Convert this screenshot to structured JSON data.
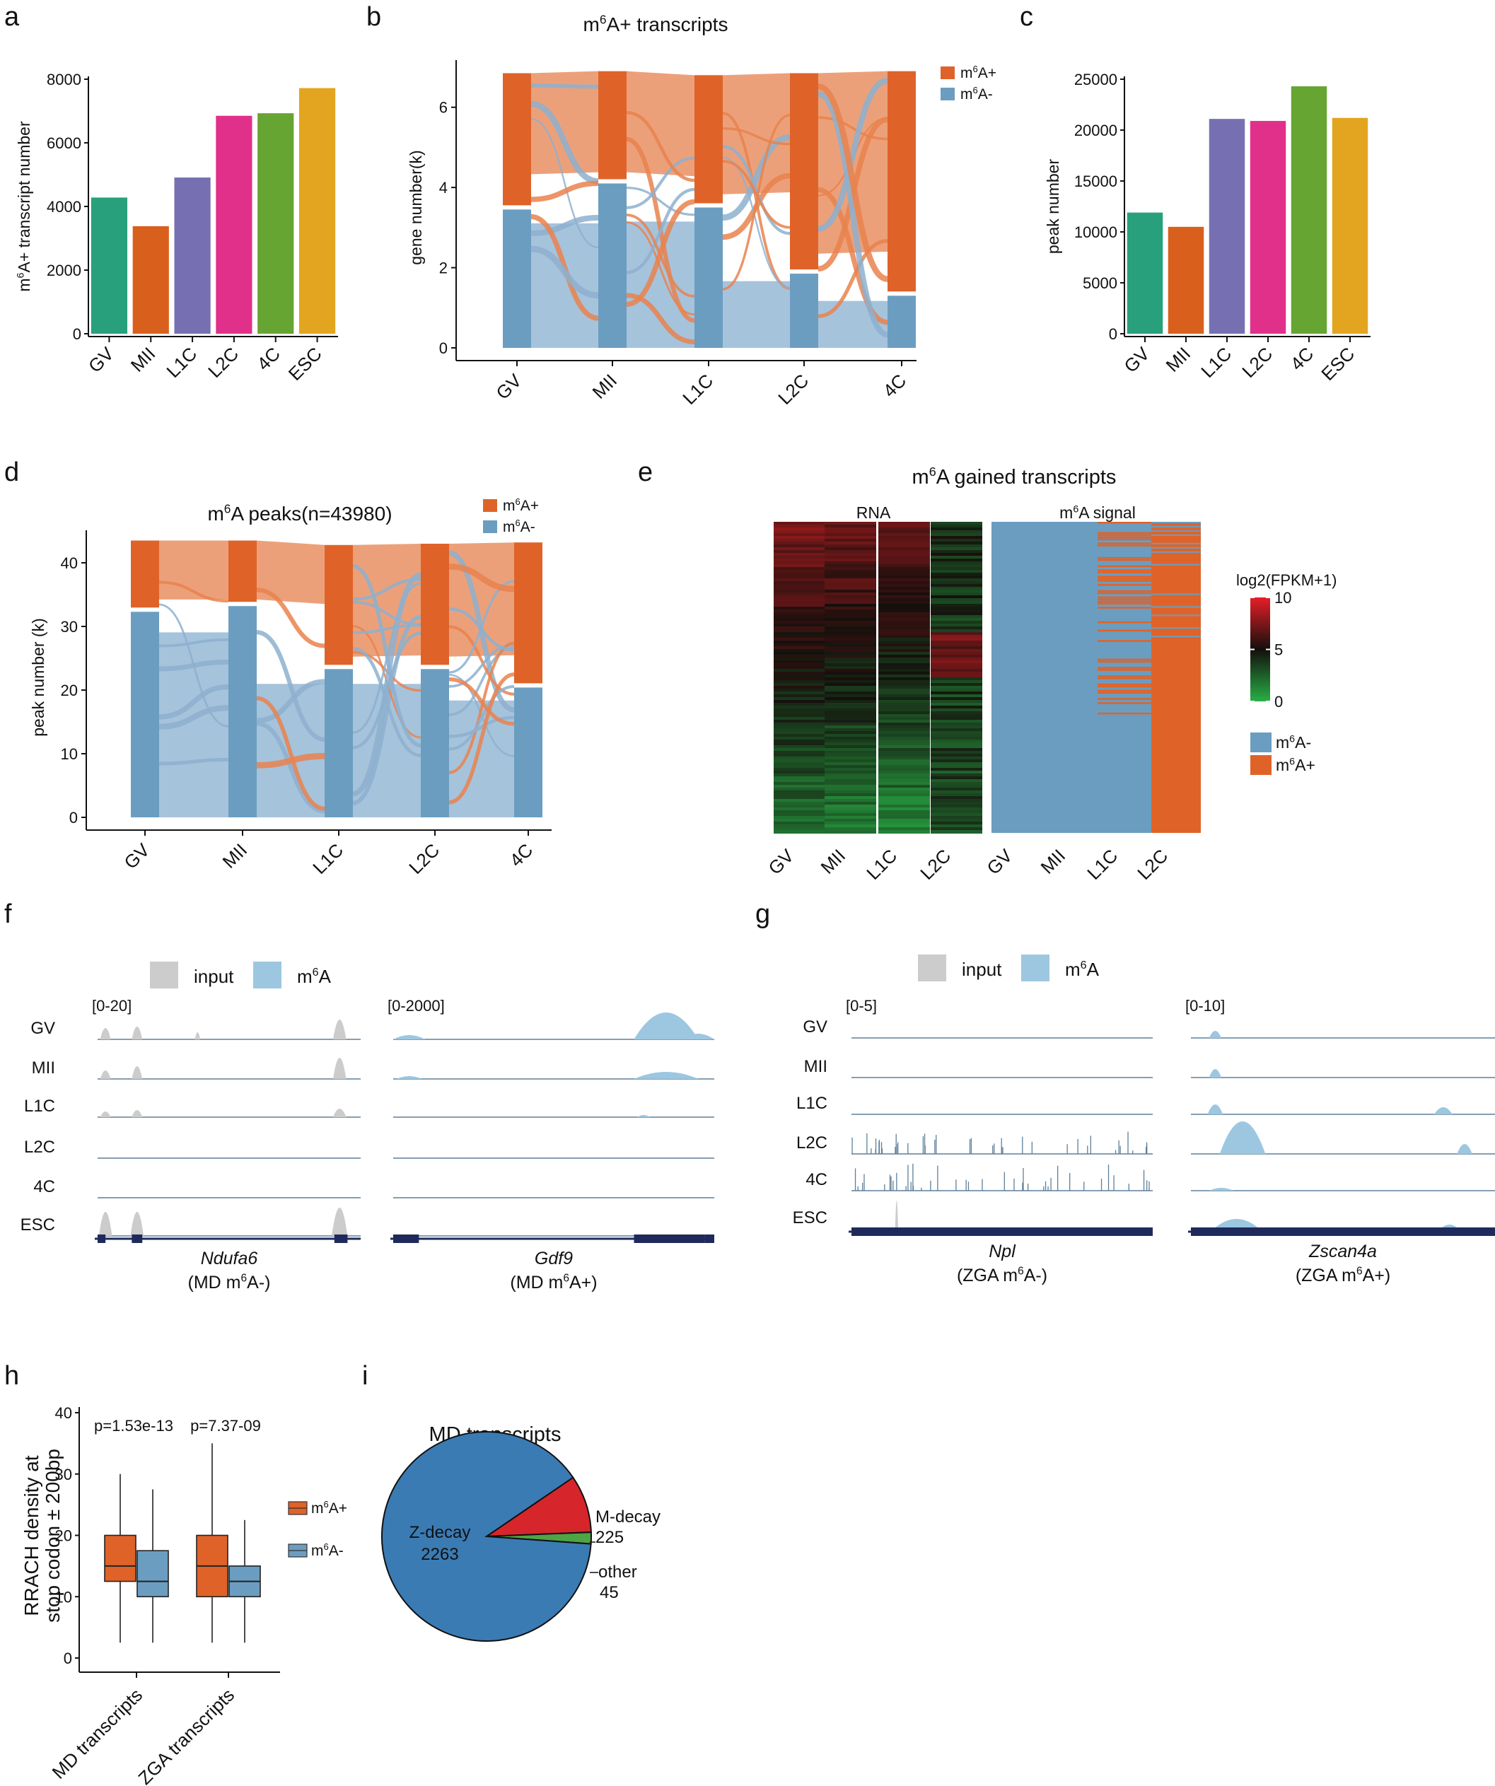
{
  "colors": {
    "m6a_pos": "#DF6329",
    "m6a_neg": "#6B9DC0",
    "m6a_pos_light": "#ECA07A",
    "m6a_neg_light": "#A6C3DC",
    "flow_blue": "#8DB0CF",
    "flow_orange": "#E9834E",
    "track_input": "#CCCCCC",
    "track_m6a": "#9DC7E0",
    "track_line": "#5E7F99",
    "gene_model": "#1F2A5C",
    "pie_zdecay": "#3A7BB4",
    "pie_mdecay": "#D6262B",
    "pie_other": "#4FA445"
  },
  "panel_letters": {
    "a": "a",
    "b": "b",
    "c": "c",
    "d": "d",
    "e": "e",
    "f": "f",
    "g": "g",
    "h": "h",
    "i": "i"
  },
  "chart_data": [
    {
      "panel": "a",
      "type": "bar",
      "title": "",
      "ylabel": "m6A+ transcript number",
      "ylim": [
        0,
        8000
      ],
      "yticks": [
        0,
        2000,
        4000,
        6000,
        8000
      ],
      "categories": [
        "GV",
        "MII",
        "L1C",
        "L2C",
        "4C",
        "ESC"
      ],
      "values": [
        4280,
        3380,
        4910,
        6850,
        6930,
        7720
      ],
      "bar_colors": [
        "#27A07B",
        "#D9601C",
        "#7670B2",
        "#E1308A",
        "#66A532",
        "#E3A51F"
      ]
    },
    {
      "panel": "b",
      "type": "alluvial",
      "title": "m6A+ transcripts",
      "ylabel": "gene number(k)",
      "ylim": [
        0,
        7
      ],
      "yticks": [
        0,
        2,
        4,
        6
      ],
      "categories": [
        "GV",
        "MII",
        "L1C",
        "L2C",
        "4C"
      ],
      "series": [
        {
          "name": "m6A+",
          "values": [
            3.4,
            2.8,
            3.3,
            5.0,
            5.6
          ]
        },
        {
          "name": "m6A-",
          "values": [
            3.45,
            4.1,
            3.5,
            1.85,
            1.3
          ]
        }
      ],
      "legend": [
        "m6A+",
        "m6A-"
      ],
      "legend_position": "top-right"
    },
    {
      "panel": "c",
      "type": "bar",
      "title": "",
      "ylabel": "peak number",
      "ylim": [
        0,
        25000
      ],
      "yticks": [
        0,
        5000,
        10000,
        15000,
        20000,
        25000
      ],
      "categories": [
        "GV",
        "MII",
        "L1C",
        "L2C",
        "4C",
        "ESC"
      ],
      "values": [
        11900,
        10500,
        21100,
        20900,
        24300,
        21200
      ],
      "bar_colors": [
        "#27A07B",
        "#D9601C",
        "#7670B2",
        "#E1308A",
        "#66A532",
        "#E3A51F"
      ]
    },
    {
      "panel": "d",
      "type": "alluvial",
      "title": "m6A peaks(n=43980)",
      "ylabel": "peak number (k)",
      "ylim": [
        0,
        44
      ],
      "yticks": [
        0,
        10,
        20,
        30,
        40
      ],
      "categories": [
        "GV",
        "MII",
        "L1C",
        "L2C",
        "4C"
      ],
      "series": [
        {
          "name": "m6A+",
          "values": [
            11.2,
            10.3,
            19.5,
            19.7,
            22.8
          ]
        },
        {
          "name": "m6A-",
          "values": [
            32.3,
            33.2,
            23.3,
            23.3,
            20.4
          ]
        }
      ],
      "legend": [
        "m6A+",
        "m6A-"
      ],
      "legend_position": "top-right"
    },
    {
      "panel": "e",
      "type": "heatmap",
      "title": "m6A gained transcripts",
      "sub_titles": [
        "RNA",
        "m6A signal"
      ],
      "columns_rna": [
        "GV",
        "MII",
        "L1C",
        "L2C"
      ],
      "columns_m6a": [
        "GV",
        "MII",
        "L1C",
        "L2C"
      ],
      "colorbar_title": "log2(FPKM+1)",
      "colorbar_ticks": [
        0,
        5,
        10
      ],
      "colorbar_range": [
        0,
        10
      ],
      "legend": [
        "m6A-",
        "m6A+"
      ]
    },
    {
      "panel": "h",
      "type": "boxplot",
      "ylabel": "RRACH density at stop codon ± 200bp",
      "ylim": [
        0,
        40
      ],
      "yticks": [
        0,
        10,
        20,
        30,
        40
      ],
      "categories": [
        "MD transcripts",
        "ZGA transcripts"
      ],
      "pvalues": [
        "p=1.53e-13",
        "p=7.37-09"
      ],
      "series": [
        {
          "name": "m6A+",
          "boxes": [
            {
              "min": 2.5,
              "q1": 12.5,
              "median": 15,
              "q3": 20,
              "max": 30
            },
            {
              "min": 2.5,
              "q1": 10,
              "median": 15,
              "q3": 20,
              "max": 35
            }
          ]
        },
        {
          "name": "m6A-",
          "boxes": [
            {
              "min": 2.5,
              "q1": 10,
              "median": 12.5,
              "q3": 17.5,
              "max": 27.5
            },
            {
              "min": 2.5,
              "q1": 10,
              "median": 12.5,
              "q3": 15,
              "max": 22.5
            }
          ]
        }
      ],
      "legend": [
        "m6A+",
        "m6A-"
      ]
    },
    {
      "panel": "i",
      "type": "pie",
      "title": "MD transcripts",
      "labels": [
        "Z-decay",
        "M-decay",
        "other"
      ],
      "values": [
        2263,
        225,
        45
      ]
    }
  ],
  "tracks_f": {
    "legend": [
      "input",
      "m6A"
    ],
    "rows": [
      "GV",
      "MII",
      "L1C",
      "L2C",
      "4C",
      "ESC"
    ],
    "left": {
      "scale": "[0-20]",
      "gene": "Ndufa6",
      "caption": "(MD m6A-)"
    },
    "right": {
      "scale": "[0-2000]",
      "gene": "Gdf9",
      "caption": "(MD m6A+)"
    }
  },
  "tracks_g": {
    "legend": [
      "input",
      "m6A"
    ],
    "rows": [
      "GV",
      "MII",
      "L1C",
      "L2C",
      "4C",
      "ESC"
    ],
    "left": {
      "scale": "[0-5]",
      "gene": "Npl",
      "caption": "(ZGA m6A-)"
    },
    "right": {
      "scale": "[0-10]",
      "gene": "Zscan4a",
      "caption": "(ZGA m6A+)"
    }
  }
}
